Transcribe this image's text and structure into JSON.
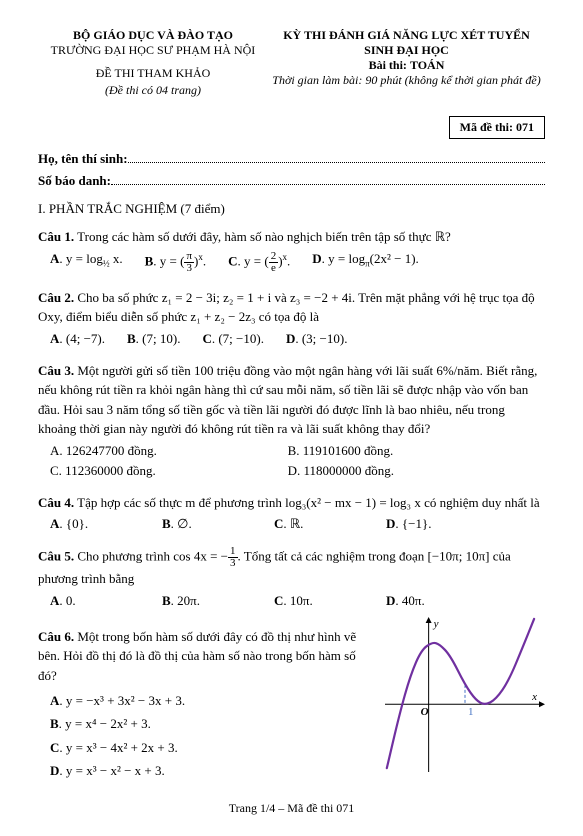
{
  "header": {
    "ministry": "BỘ GIÁO DỤC VÀ ĐÀO TẠO",
    "school": "TRƯỜNG ĐẠI HỌC SƯ PHẠM HÀ NỘI",
    "exam_title": "KỲ THI ĐÁNH GIÁ NĂNG LỰC XÉT TUYỂN SINH ĐẠI HỌC",
    "subject_label": "Bài thi:",
    "subject": "TOÁN",
    "time_note": "Thời gian làm bài: 90 phút (không kể thời gian phát đề)",
    "ref_title": "ĐỀ THI THAM KHẢO",
    "ref_note": "(Đề thi có 04 trang)",
    "exam_code_label": "Mã đề thi: 071",
    "name_label": "Họ, tên thí sinh:",
    "id_label": "Số báo danh:"
  },
  "section1_title": "I. PHẦN TRẮC NGHIỆM (7 điểm)",
  "q1": {
    "label": "Câu 1.",
    "text": "Trong các hàm số dưới đây, hàm số nào nghịch biến trên tập số thực ℝ?",
    "a_pre": "y = log",
    "a_sub": "½",
    "a_post": " x.",
    "b_pre": "y = ",
    "b_frac_num": "π",
    "b_frac_den": "3",
    "b_post": ".",
    "c_pre": "y = ",
    "c_frac_num": "2",
    "c_frac_den": "e",
    "c_post": ".",
    "d_pre": "y = log",
    "d_sub": "π",
    "d_post": "(2x² − 1)."
  },
  "q2": {
    "label": "Câu 2.",
    "text": "Cho ba số phức z₁ = 2 − 3i; z₂ = 1 + i và z₃ = −2 + 4i. Trên mặt phẳng với hệ trục tọa độ Oxy, điểm biểu diễn số phức z₁ + z₂ − 2z₃ có tọa độ là",
    "a": "(4; −7).",
    "b": "(7; 10).",
    "c": "(7; −10).",
    "d": "(3; −10)."
  },
  "q3": {
    "label": "Câu 3.",
    "text": "Một người gửi số tiền 100 triệu đồng vào một ngân hàng với lãi suất 6%/năm. Biết rằng, nếu không rút tiền ra khỏi ngân hàng thì cứ sau mỗi năm, số tiền lãi sẽ được nhập vào vốn ban đầu. Hỏi sau 3 năm tổng số tiền gốc và tiền lãi người đó được lĩnh là bao nhiêu, nếu trong khoảng thời gian này người đó không rút tiền ra và lãi suất không thay đổi?",
    "a": "126247700 đồng.",
    "b": "119101600 đồng.",
    "c": "112360000 đồng.",
    "d": "118000000 đồng."
  },
  "q4": {
    "label": "Câu 4.",
    "text_pre": "Tập hợp các số thực m để phương trình log₃(x² − mx − 1) = log₃ x có nghiệm duy nhất là",
    "a": "{0}.",
    "b": "∅.",
    "c": "ℝ.",
    "d": "{−1}."
  },
  "q5": {
    "label": "Câu 5.",
    "text_pre": "Cho phương trình cos 4x = −",
    "frac_num": "1",
    "frac_den": "3",
    "text_post": ". Tổng tất cả các nghiệm trong đoạn [−10π; 10π] của phương trình bằng",
    "a": "0.",
    "b": "20π.",
    "c": "10π.",
    "d": "40π."
  },
  "q6": {
    "label": "Câu 6.",
    "text": "Một trong bốn hàm số dưới đây có đồ thị như hình vẽ bên. Hỏi đồ thị đó là đồ thị của hàm số nào trong bốn hàm số đó?",
    "a": "y = −x³ + 3x² − 3x + 3.",
    "b": "y = x⁴ − 2x² + 3.",
    "c": "y = x³ − 4x² + 2x + 3.",
    "d": "y = x³ − x² − x + 3."
  },
  "chart": {
    "curve_color": "#7030a0",
    "axis_color": "#000000",
    "dash_color": "#4472c4",
    "tick_color": "#4472c4",
    "background": "#ffffff",
    "axis_label_x": "x",
    "axis_label_y": "y",
    "origin_label": "O",
    "tick_label": "1",
    "label_fontsize": 11,
    "label_font_style": "italic",
    "xlim": [
      -1.2,
      3.2
    ],
    "ylim": [
      -3.5,
      4.5
    ],
    "curve_points": [
      [
        -1.15,
        -3.3
      ],
      [
        -0.8,
        -0.5
      ],
      [
        -0.5,
        1.5
      ],
      [
        -0.2,
        2.8
      ],
      [
        0.1,
        3.2
      ],
      [
        0.3,
        3.1
      ],
      [
        0.6,
        2.5
      ],
      [
        1.0,
        1.0
      ],
      [
        1.3,
        0.2
      ],
      [
        1.55,
        -0.05
      ],
      [
        1.85,
        0.25
      ],
      [
        2.2,
        1.2
      ],
      [
        2.6,
        3.0
      ],
      [
        2.9,
        4.4
      ]
    ],
    "line_width": 2.2
  },
  "footer": "Trang 1/4 – Mã đề thi 071"
}
